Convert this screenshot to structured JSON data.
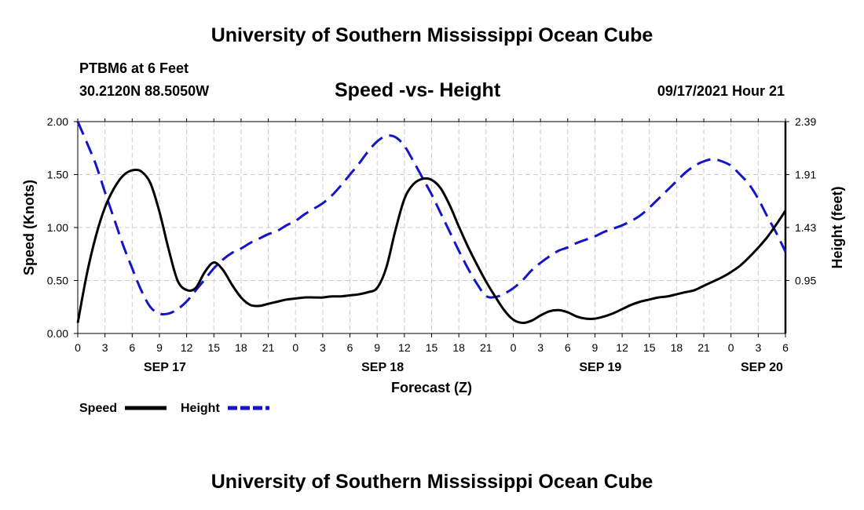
{
  "header": {
    "title": "University of Southern Mississippi Ocean Cube",
    "station": "PTBM6 at 6 Feet",
    "coords": "30.2120N  88.5050W",
    "chart_title": "Speed -vs- Height",
    "datetime": "09/17/2021 Hour 21"
  },
  "footer": {
    "title": "University of Southern Mississippi Ocean Cube"
  },
  "legend": {
    "speed_label": "Speed",
    "height_label": "Height"
  },
  "colors": {
    "speed": "#000000",
    "height": "#1414c8",
    "grid": "#cccccc"
  },
  "chart_data": {
    "type": "line",
    "title": "Speed -vs- Height",
    "xlabel": "Forecast (Z)",
    "ylabel": "Speed (Knots)",
    "ylabel_right": "Height (feet)",
    "x_range": [
      0,
      78
    ],
    "ylim": [
      0,
      2
    ],
    "ylim_right": [
      0.47,
      2.39
    ],
    "x_ticks": [
      0,
      3,
      6,
      9,
      12,
      15,
      18,
      21,
      24,
      27,
      30,
      33,
      36,
      39,
      42,
      45,
      48,
      51,
      54,
      57,
      60,
      63,
      66,
      69,
      72,
      75,
      78
    ],
    "x_tick_labels": [
      "0",
      "3",
      "6",
      "9",
      "12",
      "15",
      "18",
      "21",
      "0",
      "3",
      "6",
      "9",
      "12",
      "15",
      "18",
      "21",
      "0",
      "3",
      "6",
      "9",
      "12",
      "15",
      "18",
      "21",
      "0",
      "3",
      "6"
    ],
    "date_labels": [
      {
        "x": 9.6,
        "label": "SEP 17"
      },
      {
        "x": 33.6,
        "label": "SEP 18"
      },
      {
        "x": 57.6,
        "label": "SEP 19"
      },
      {
        "x": 75.4,
        "label": "SEP 20"
      }
    ],
    "y_ticks": [
      0,
      0.5,
      1,
      1.5,
      2
    ],
    "y_tick_labels": [
      "0.00",
      "0.50",
      "1.00",
      "1.50",
      "2.00"
    ],
    "y_ticks_right": [
      0.95,
      1.43,
      1.91,
      2.39
    ],
    "y_tick_labels_right": [
      "0.95",
      "1.43",
      "1.91",
      "2.39"
    ],
    "grid": true,
    "series": [
      {
        "name": "Speed",
        "axis": "left",
        "style": "solid",
        "x": [
          0,
          1,
          2,
          3,
          4,
          5,
          6,
          7,
          8,
          9,
          10,
          11,
          12,
          13,
          14,
          15,
          16,
          17,
          18,
          19,
          20,
          21,
          22,
          23,
          24,
          25,
          26,
          27,
          28,
          29,
          30,
          31,
          32,
          33,
          34,
          35,
          36,
          37,
          38,
          39,
          40,
          41,
          42,
          43,
          44,
          45,
          46,
          47,
          48,
          49,
          50,
          51,
          52,
          53,
          54,
          55,
          56,
          57,
          58,
          59,
          60,
          61,
          62,
          63,
          64,
          65,
          66,
          67,
          68,
          69,
          70,
          71,
          72,
          73,
          74,
          75,
          76,
          77,
          78
        ],
        "values": [
          0.1,
          0.56,
          0.92,
          1.19,
          1.37,
          1.49,
          1.54,
          1.53,
          1.42,
          1.15,
          0.8,
          0.5,
          0.41,
          0.43,
          0.58,
          0.67,
          0.6,
          0.46,
          0.34,
          0.27,
          0.26,
          0.28,
          0.3,
          0.32,
          0.33,
          0.34,
          0.34,
          0.34,
          0.35,
          0.35,
          0.36,
          0.37,
          0.39,
          0.43,
          0.62,
          0.97,
          1.27,
          1.41,
          1.46,
          1.45,
          1.37,
          1.21,
          1.01,
          0.82,
          0.65,
          0.49,
          0.35,
          0.22,
          0.13,
          0.1,
          0.12,
          0.17,
          0.21,
          0.22,
          0.2,
          0.16,
          0.14,
          0.14,
          0.16,
          0.19,
          0.23,
          0.27,
          0.3,
          0.32,
          0.34,
          0.35,
          0.37,
          0.39,
          0.41,
          0.45,
          0.49,
          0.53,
          0.58,
          0.64,
          0.72,
          0.81,
          0.91,
          1.03,
          1.16
        ]
      },
      {
        "name": "Height",
        "axis": "right",
        "style": "dashed",
        "x": [
          0,
          1,
          2,
          3,
          4,
          5,
          6,
          7,
          8,
          9,
          10,
          11,
          12,
          13,
          14,
          15,
          16,
          17,
          18,
          19,
          20,
          21,
          22,
          23,
          24,
          25,
          26,
          27,
          28,
          29,
          30,
          31,
          32,
          33,
          34,
          35,
          36,
          37,
          38,
          39,
          40,
          41,
          42,
          43,
          44,
          45,
          46,
          47,
          48,
          49,
          50,
          51,
          52,
          53,
          54,
          55,
          56,
          57,
          58,
          59,
          60,
          61,
          62,
          63,
          64,
          65,
          66,
          67,
          68,
          69,
          70,
          71,
          72,
          73,
          74,
          75,
          76,
          77,
          78
        ],
        "values": [
          2.39,
          2.2,
          2.0,
          1.75,
          1.51,
          1.27,
          1.06,
          0.86,
          0.71,
          0.65,
          0.65,
          0.69,
          0.76,
          0.86,
          0.96,
          1.06,
          1.14,
          1.2,
          1.24,
          1.29,
          1.33,
          1.37,
          1.4,
          1.45,
          1.49,
          1.55,
          1.6,
          1.65,
          1.72,
          1.81,
          1.91,
          2.01,
          2.12,
          2.21,
          2.26,
          2.25,
          2.17,
          2.03,
          1.88,
          1.73,
          1.56,
          1.39,
          1.22,
          1.06,
          0.92,
          0.81,
          0.8,
          0.83,
          0.88,
          0.95,
          1.04,
          1.11,
          1.17,
          1.22,
          1.25,
          1.29,
          1.32,
          1.35,
          1.39,
          1.42,
          1.45,
          1.49,
          1.54,
          1.61,
          1.69,
          1.77,
          1.85,
          1.93,
          1.99,
          2.03,
          2.05,
          2.03,
          1.99,
          1.91,
          1.82,
          1.69,
          1.53,
          1.38,
          1.21
        ]
      }
    ]
  }
}
